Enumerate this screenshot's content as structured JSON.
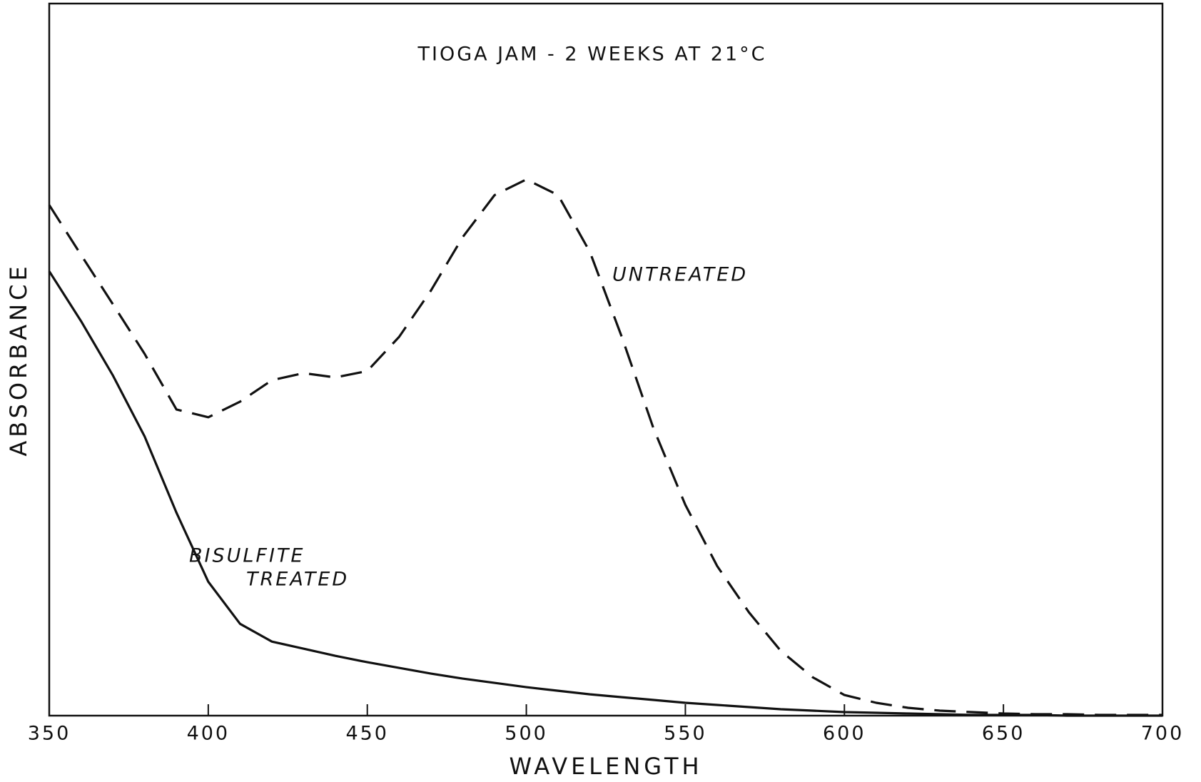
{
  "chart_data": {
    "type": "line",
    "title": "TIOGA JAM - 2 WEEKS AT 21°C",
    "xlabel": "WAVELENGTH",
    "ylabel": "ABSORBANCE",
    "annotations": [
      "UNTREATED",
      "BISULFITE",
      "TREATED"
    ],
    "x": [
      350,
      360,
      370,
      380,
      390,
      400,
      410,
      420,
      430,
      440,
      450,
      460,
      470,
      480,
      490,
      500,
      510,
      520,
      530,
      540,
      550,
      560,
      570,
      580,
      590,
      600,
      610,
      620,
      630,
      640,
      650,
      660,
      670,
      680,
      690,
      700
    ],
    "series": [
      {
        "color": "#111111",
        "dashed": true,
        "values": [
          0.717,
          0.647,
          0.578,
          0.508,
          0.43,
          0.419,
          0.441,
          0.471,
          0.481,
          0.475,
          0.484,
          0.532,
          0.597,
          0.672,
          0.731,
          0.753,
          0.731,
          0.651,
          0.532,
          0.403,
          0.296,
          0.21,
          0.145,
          0.091,
          0.054,
          0.029,
          0.018,
          0.011,
          0.007,
          0.005,
          0.003,
          0.002,
          0.002,
          0.001,
          0.001,
          0.001
        ]
      },
      {
        "color": "#111111",
        "dashed": false,
        "values": [
          0.624,
          0.554,
          0.478,
          0.392,
          0.285,
          0.188,
          0.129,
          0.104,
          0.094,
          0.084,
          0.075,
          0.067,
          0.059,
          0.052,
          0.046,
          0.04,
          0.035,
          0.03,
          0.026,
          0.022,
          0.018,
          0.015,
          0.012,
          0.009,
          0.007,
          0.005,
          0.004,
          0.003,
          0.002,
          0.001,
          0.001,
          0.001,
          0,
          0,
          0,
          0
        ]
      }
    ],
    "xlim": [
      350,
      700
    ],
    "xticks": [
      350,
      400,
      450,
      500,
      550,
      600,
      650,
      700
    ],
    "ylim": [
      0,
      1
    ]
  }
}
